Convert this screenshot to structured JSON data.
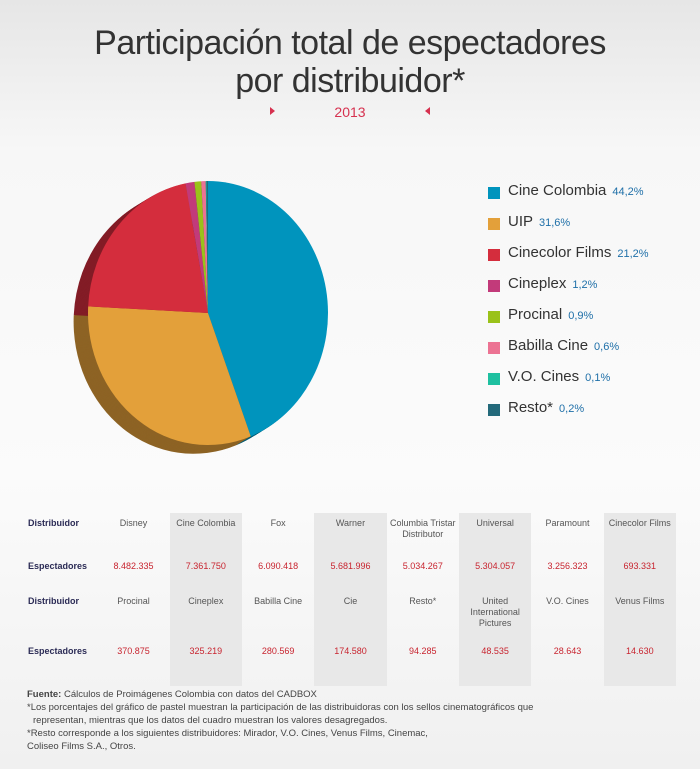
{
  "title_line1": "Participación total de espectadores",
  "title_line2": "por distribuidor*",
  "year": "2013",
  "chart_data": {
    "type": "pie",
    "title": "Participación total de espectadores por distribuidor*",
    "categories": [
      "Cine Colombia",
      "UIP",
      "Cinecolor Films",
      "Cineplex",
      "Procinal",
      "Babilla Cine",
      "V.O. Cines",
      "Resto*"
    ],
    "values": [
      44.2,
      31.6,
      21.2,
      1.2,
      0.9,
      0.6,
      0.1,
      0.2
    ],
    "labels": [
      "44,2%",
      "31,6%",
      "21,2%",
      "1,2%",
      "0,9%",
      "0,6%",
      "0,1%",
      "0,2%"
    ],
    "colors": [
      "#0094bd",
      "#e3a03a",
      "#d42d3d",
      "#c23a7a",
      "#9ac21a",
      "#ec7393",
      "#1ec0a0",
      "#23697a"
    ],
    "legend": "right"
  },
  "table": {
    "row_header_name": "Distribuidor",
    "row_header_value": "Espectadores",
    "rows": [
      {
        "names": [
          "Disney",
          "Cine Colombia",
          "Fox",
          "Warner",
          "Columbia Tristar Distributor",
          "Universal",
          "Paramount",
          "Cinecolor Films"
        ],
        "values": [
          "8.482.335",
          "7.361.750",
          "6.090.418",
          "5.681.996",
          "5.034.267",
          "5.304.057",
          "3.256.323",
          "693.331"
        ]
      },
      {
        "names": [
          "Procinal",
          "Cineplex",
          "Babilla Cine",
          "Cie",
          "Resto*",
          "United International Pictures",
          "V.O. Cines",
          "Venus Films"
        ],
        "values": [
          "370.875",
          "325.219",
          "280.569",
          "174.580",
          "94.285",
          "48.535",
          "28.643",
          "14.630"
        ]
      }
    ]
  },
  "footer": {
    "source_label": "Fuente:",
    "source_text": "Cálculos de Proimágenes Colombia con datos del CADBOX",
    "note1_line1": "*Los porcentajes del gráfico de pastel muestran la participación de las distribuidoras con los sellos cinematográficos que",
    "note1_line2": "representan, mientras que los datos del cuadro muestran los valores desagregados.",
    "note2_line1": "*Resto corresponde a los siguientes distribuidores: Mirador, V.O. Cines, Venus Films, Cinemac,",
    "note2_line2": "Coliseo Films S.A., Otros."
  }
}
